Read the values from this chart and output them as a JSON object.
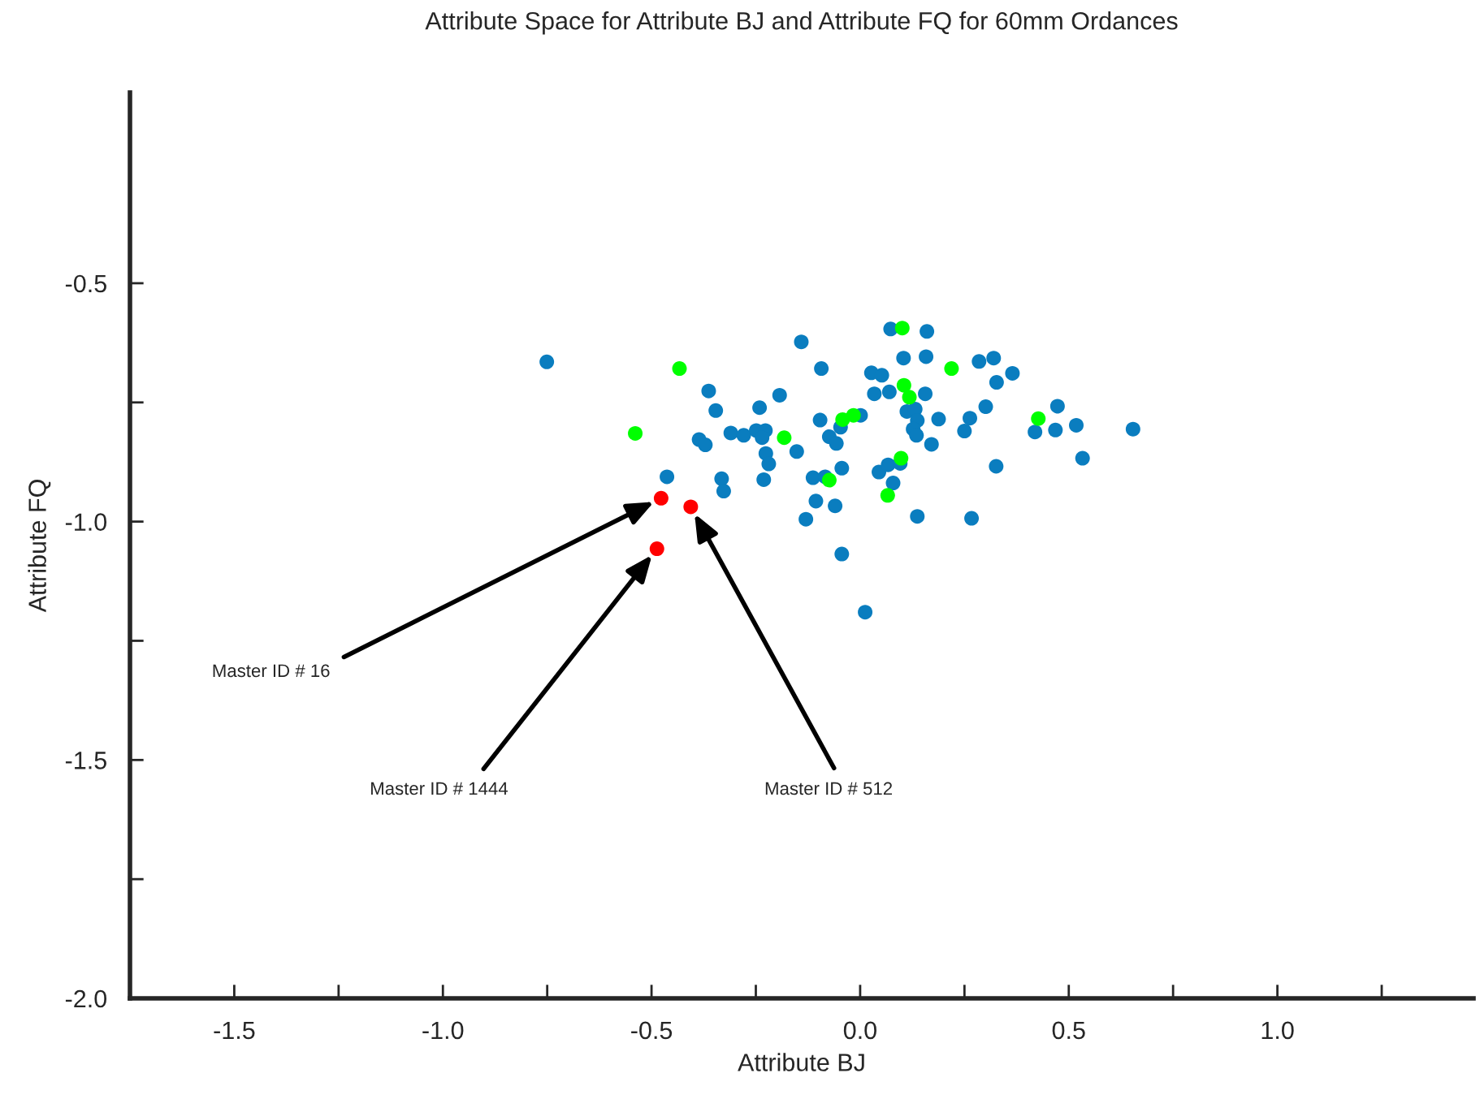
{
  "chart_data": {
    "type": "scatter",
    "title": "Attribute Space for Attribute BJ and Attribute FQ for 60mm Ordances",
    "xlabel": "Attribute BJ",
    "ylabel": "Attribute FQ",
    "xlim": [
      -1.75,
      1.47
    ],
    "ylim": [
      -2.0,
      -0.1
    ],
    "xticks": [
      {
        "value": -1.75,
        "label": null
      },
      -1.5,
      {
        "value": -1.25,
        "label": null
      },
      {
        "value": -1,
        "label": "-1.0"
      },
      {
        "value": -0.75,
        "label": null
      },
      -0.5,
      {
        "value": -0.25,
        "label": null
      },
      {
        "value": 0,
        "label": "0.0"
      },
      {
        "value": 0.25,
        "label": null
      },
      0.5,
      {
        "value": 0.75,
        "label": null
      },
      {
        "value": 1,
        "label": "1.0"
      },
      {
        "value": 1.25,
        "label": null
      }
    ],
    "yticks": [
      {
        "value": -2,
        "label": "-2.0"
      },
      {
        "value": -1.75,
        "label": null
      },
      -1.5,
      {
        "value": -1.25,
        "label": null
      },
      {
        "value": -1,
        "label": "-1.0"
      },
      {
        "value": -0.75,
        "label": null
      },
      -0.5
    ],
    "grid": false,
    "legend": false,
    "marker": "circle",
    "series": [
      {
        "color": "#0a7dbf",
        "x": [
          -0.751,
          -0.363,
          -0.346,
          -0.193,
          -0.241,
          -0.141,
          -0.093,
          -0.096,
          -0.31,
          -0.279,
          -0.249,
          -0.227,
          -0.235,
          -0.386,
          -0.371,
          -0.226,
          -0.219,
          -0.152,
          -0.074,
          -0.057,
          -0.047,
          -0.044,
          -0.463,
          -0.332,
          -0.327,
          -0.231,
          -0.113,
          -0.084,
          -0.106,
          -0.06,
          -0.13,
          -0.044,
          0.073,
          0.16,
          0.104,
          0.158,
          0.027,
          0.052,
          0.034,
          0.07,
          0.156,
          0.285,
          0.32,
          0.327,
          0.365,
          0.301,
          0.263,
          0.25,
          0.188,
          0.171,
          0.112,
          0.132,
          0.137,
          0.127,
          0.135,
          0.001,
          0.473,
          0.419,
          0.468,
          0.518,
          0.654,
          0.533,
          0.326,
          0.045,
          0.067,
          0.096,
          0.079,
          0.137,
          0.267,
          0.012
        ],
        "values": [
          -0.665,
          -0.726,
          -0.767,
          -0.735,
          -0.761,
          -0.623,
          -0.679,
          -0.787,
          -0.814,
          -0.819,
          -0.809,
          -0.809,
          -0.824,
          -0.828,
          -0.839,
          -0.857,
          -0.879,
          -0.853,
          -0.822,
          -0.836,
          -0.802,
          -0.888,
          -0.906,
          -0.91,
          -0.936,
          -0.912,
          -0.908,
          -0.906,
          -0.957,
          -0.967,
          -0.995,
          -1.068,
          -0.596,
          -0.601,
          -0.657,
          -0.654,
          -0.688,
          -0.693,
          -0.732,
          -0.728,
          -0.732,
          -0.664,
          -0.657,
          -0.708,
          -0.689,
          -0.759,
          -0.783,
          -0.81,
          -0.785,
          -0.838,
          -0.769,
          -0.764,
          -0.788,
          -0.806,
          -0.819,
          -0.777,
          -0.758,
          -0.812,
          -0.808,
          -0.798,
          -0.806,
          -0.867,
          -0.884,
          -0.896,
          -0.881,
          -0.878,
          -0.919,
          -0.989,
          -0.993,
          -1.19
        ]
      },
      {
        "color": "#00ff00",
        "x": [
          -0.433,
          -0.539,
          -0.182,
          -0.074,
          -0.042,
          -0.016,
          0.101,
          0.219,
          0.105,
          0.118,
          0.427,
          0.098,
          0.066
        ],
        "values": [
          -0.679,
          -0.815,
          -0.824,
          -0.913,
          -0.786,
          -0.777,
          -0.594,
          -0.679,
          -0.714,
          -0.739,
          -0.784,
          -0.867,
          -0.945
        ]
      },
      {
        "color": "#ff0000",
        "x": [
          -0.477,
          -0.406,
          -0.487
        ],
        "values": [
          -0.951,
          -0.969,
          -1.057
        ]
      }
    ],
    "annotations": [
      {
        "text": "Master ID # 16",
        "x": -0.477,
        "y": -0.951
      },
      {
        "text": "Master ID # 1444",
        "x": -0.487,
        "y": -1.057
      },
      {
        "text": "Master ID # 512",
        "x": -0.406,
        "y": -0.969
      }
    ]
  }
}
